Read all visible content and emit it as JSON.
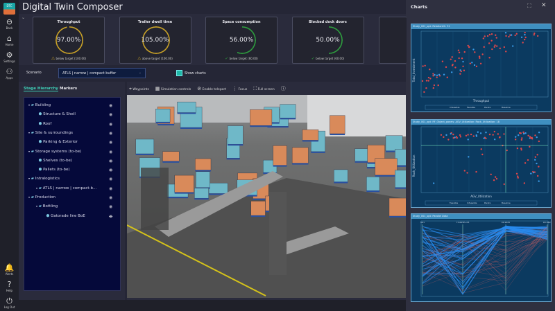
{
  "app": {
    "title": "Digital Twin Composer",
    "logo": "DTC"
  },
  "rail": {
    "top": [
      {
        "label": "Back",
        "icon": "back-icon",
        "glyph": "⊖"
      },
      {
        "label": "Home",
        "icon": "home-icon",
        "glyph": "⌂"
      },
      {
        "label": "Settings",
        "icon": "gear-icon",
        "glyph": "⚙"
      },
      {
        "label": "Apps",
        "icon": "apps-icon",
        "glyph": "⚇"
      }
    ],
    "bottom": [
      {
        "label": "Alerts",
        "icon": "bell-icon",
        "glyph": "🔔"
      },
      {
        "label": "Help",
        "icon": "help-icon",
        "glyph": "?"
      },
      {
        "label": "Log Out",
        "icon": "logout-icon",
        "glyph": "⏻"
      }
    ]
  },
  "kpis": [
    {
      "title": "Throughput",
      "value": "97.00%",
      "status": "below target (100.00)",
      "color": "#c9a227",
      "icon": "warning-icon",
      "fill": 0.97
    },
    {
      "title": "Trailer dwell time",
      "value": "105.00%",
      "status": "above target (100.00)",
      "color": "#c9a227",
      "icon": "warning-icon",
      "fill": 1.0
    },
    {
      "title": "Space consumption",
      "value": "56.00%",
      "status": "below target (60.00)",
      "color": "#2e9e3e",
      "icon": "check-icon",
      "fill": 0.56
    },
    {
      "title": "Blocked dock doors",
      "value": "50.00%",
      "status": "below target (60.00)",
      "color": "#2e9e3e",
      "icon": "check-icon",
      "fill": 0.5
    }
  ],
  "scenario": {
    "label": "Scenario",
    "value": "ATLS | narrow | compact buffer",
    "show_charts": "Show charts",
    "show_charts_checked": true
  },
  "stage": {
    "tabs": [
      "Stage Hierarchy",
      "Markers"
    ],
    "items": [
      {
        "label": "Building",
        "level": 0,
        "type": "group",
        "visible": true
      },
      {
        "label": "Structure & Shell",
        "level": 1,
        "type": "cube",
        "visible": true
      },
      {
        "label": "Roof",
        "level": 1,
        "type": "cube",
        "visible": true
      },
      {
        "label": "Site & surroundings",
        "level": 0,
        "type": "group",
        "visible": true
      },
      {
        "label": "Parking & Exterior",
        "level": 1,
        "type": "cube",
        "visible": true
      },
      {
        "label": "Storage systems (to-be)",
        "level": 0,
        "type": "group",
        "visible": true
      },
      {
        "label": "Shelves (to-be)",
        "level": 1,
        "type": "cube",
        "visible": false
      },
      {
        "label": "Pallets (to-be)",
        "level": 1,
        "type": "cube",
        "visible": false
      },
      {
        "label": "Intralogistics",
        "level": 0,
        "type": "group",
        "visible": true
      },
      {
        "label": "ATLS | narrow | compact-b...",
        "level": 1,
        "type": "group",
        "visible": true
      },
      {
        "label": "Production",
        "level": 0,
        "type": "group",
        "visible": true
      },
      {
        "label": "Bottling",
        "level": 1,
        "type": "group",
        "visible": true
      },
      {
        "label": "Gatorade line BoE",
        "level": 2,
        "type": "cube",
        "visible": false
      }
    ]
  },
  "viewport": {
    "tools": [
      "Waypoints",
      "Simulation controls",
      "Enable teleport",
      "Focus",
      "Full screen"
    ]
  },
  "charts": {
    "title": "Charts",
    "panels": [
      {
        "title": "Study_001_opt: Relation01: 31",
        "xlabel": "Throughput",
        "ylabel": "Total_Investment",
        "legend": [
          "Infeasible",
          "Feasible",
          "Pareto",
          "Baseline"
        ]
      },
      {
        "title": "Study_001_opt: RF_Object_panels: AGV_Utilization: Rack_Utilization: 18",
        "xlabel": "AGV_Utilization",
        "ylabel": "Rack_Utilization",
        "legend": [
          "Feasible",
          "Infeasible",
          "Pareto",
          "Baseline"
        ]
      },
      {
        "title": "Study_001_opt: Parallel Data",
        "axes": [
          "SD1",
          "7.6445E+05",
          "99.9025",
          "99.9345"
        ]
      }
    ]
  }
}
